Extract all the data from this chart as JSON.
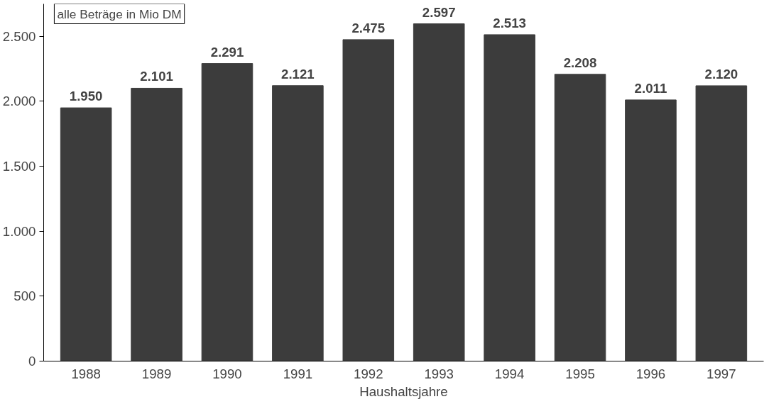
{
  "chart_data": {
    "type": "bar",
    "xlabel": "Haushaltsjahre",
    "categories": [
      "1988",
      "1989",
      "1990",
      "1991",
      "1992",
      "1993",
      "1994",
      "1995",
      "1996",
      "1997"
    ],
    "values": [
      1950,
      2101,
      2291,
      2121,
      2475,
      2597,
      2513,
      2208,
      2011,
      2120
    ],
    "value_labels": [
      "1.950",
      "2.101",
      "2.291",
      "2.121",
      "2.475",
      "2.597",
      "2.513",
      "2.208",
      "2.011",
      "2.120"
    ],
    "color": "#3c3c3c",
    "ylim": [
      0,
      2750
    ],
    "yticks": [
      0,
      500,
      {
        "value": 1000,
        "label": "1.000"
      },
      {
        "value": 1500,
        "label": "1.500"
      },
      {
        "value": 2000,
        "label": "2.000"
      },
      {
        "value": 2500,
        "label": "2.500"
      }
    ],
    "annotations": [
      "alle Beträge in Mio DM"
    ],
    "grid": false
  }
}
